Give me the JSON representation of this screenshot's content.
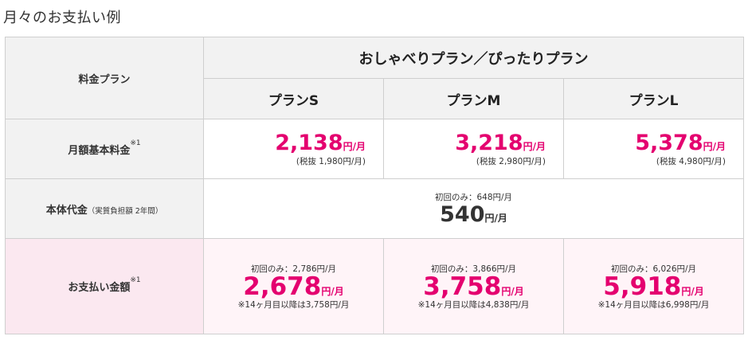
{
  "page_title": "月々のお支払い例",
  "table": {
    "row_label_plan": "料金プラン",
    "group_header": "おしゃべりプラン／ぴったりプラン",
    "plans": [
      {
        "name": "プランS",
        "monthly_basic_price": "2,138",
        "monthly_basic_unit": "円/月",
        "monthly_basic_taxfree": "(税抜 1,980円/月)",
        "pay_first": "初回のみ：2,786円/月",
        "pay_price": "2,678",
        "pay_unit": "円/月",
        "pay_after": "※14ヶ月目以降は3,758円/月"
      },
      {
        "name": "プランM",
        "monthly_basic_price": "3,218",
        "monthly_basic_unit": "円/月",
        "monthly_basic_taxfree": "(税抜 2,980円/月)",
        "pay_first": "初回のみ：3,866円/月",
        "pay_price": "3,758",
        "pay_unit": "円/月",
        "pay_after": "※14ヶ月目以降は4,838円/月"
      },
      {
        "name": "プランL",
        "monthly_basic_price": "5,378",
        "monthly_basic_unit": "円/月",
        "monthly_basic_taxfree": "(税抜 4,980円/月)",
        "pay_first": "初回のみ：6,026円/月",
        "pay_price": "5,918",
        "pay_unit": "円/月",
        "pay_after": "※14ヶ月目以降は6,998円/月"
      }
    ],
    "row_monthly_basic": {
      "label": "月額基本料金",
      "note": "※1"
    },
    "row_device": {
      "label": "本体代金",
      "label_small": "（実質負担額 2年間）",
      "first_only": "初回のみ：648円/月",
      "price": "540",
      "unit": "円/月"
    },
    "row_payment": {
      "label": "お支払い金額",
      "note": "※1"
    }
  },
  "colors": {
    "accent": "#e4006f",
    "header_bg": "#f2f2f2",
    "payment_bg": "#fff4f8",
    "border": "#cfcfcf"
  }
}
